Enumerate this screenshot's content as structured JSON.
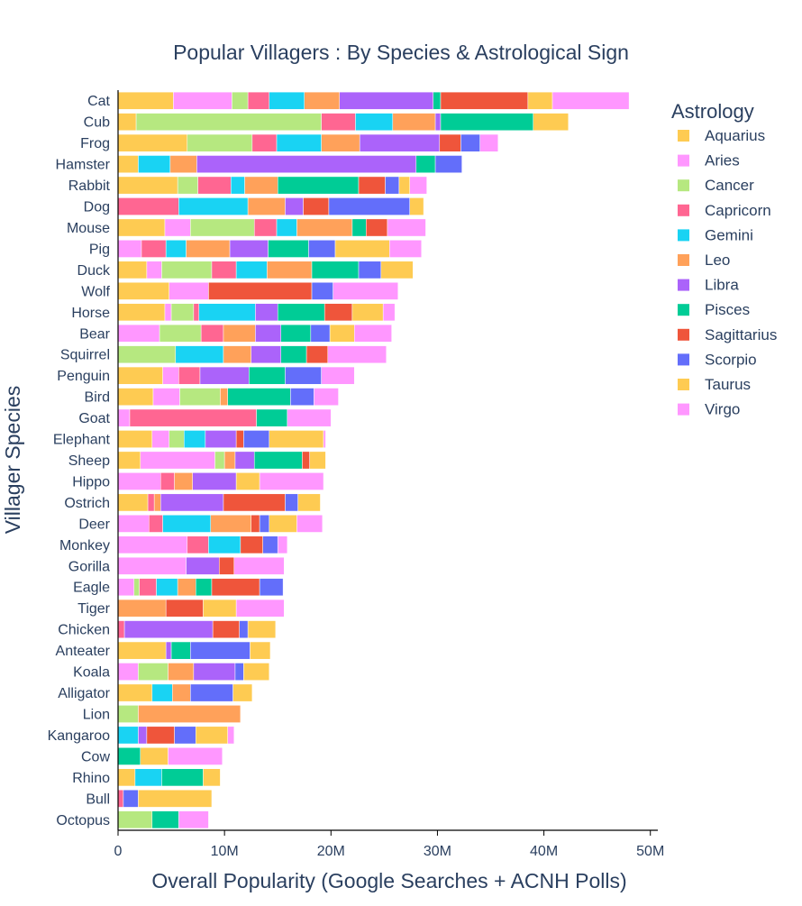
{
  "chart_data": {
    "type": "bar",
    "orientation": "horizontal",
    "barmode": "stack",
    "title": "Popular Villagers : By Species & Astrological Sign",
    "xlabel": "Overall Popularity (Google Searches + ACNH Polls)",
    "ylabel": "Villager Species",
    "xlim": [
      0,
      50700000
    ],
    "x_ticks": [
      0,
      10000000,
      20000000,
      30000000,
      40000000,
      50000000
    ],
    "x_tick_labels": [
      "0",
      "10M",
      "20M",
      "30M",
      "40M",
      "50M"
    ],
    "grid": false,
    "legend_title": "Astrology",
    "legend_position": "right",
    "categories": [
      "Cat",
      "Cub",
      "Frog",
      "Hamster",
      "Rabbit",
      "Dog",
      "Mouse",
      "Pig",
      "Duck",
      "Wolf",
      "Horse",
      "Bear",
      "Squirrel",
      "Penguin",
      "Bird",
      "Goat",
      "Elephant",
      "Sheep",
      "Hippo",
      "Ostrich",
      "Deer",
      "Monkey",
      "Gorilla",
      "Eagle",
      "Tiger",
      "Chicken",
      "Anteater",
      "Koala",
      "Alligator",
      "Lion",
      "Kangaroo",
      "Cow",
      "Rhino",
      "Bull",
      "Octopus"
    ],
    "series": [
      {
        "name": "Aquarius",
        "color": "#FECB52",
        "values": [
          5200000,
          1700000,
          6500000,
          1900000,
          5600000,
          0,
          4400000,
          0,
          2700000,
          4800000,
          4400000,
          0,
          0,
          4200000,
          3300000,
          0,
          3200000,
          2100000,
          0,
          2800000,
          0,
          0,
          0,
          0,
          0,
          0,
          4500000,
          0,
          3200000,
          0,
          0,
          0,
          1600000,
          0,
          0
        ]
      },
      {
        "name": "Aries",
        "color": "#FF97FF",
        "values": [
          5500000,
          0,
          0,
          0,
          0,
          0,
          2400000,
          2200000,
          1400000,
          3700000,
          600000,
          3900000,
          0,
          1500000,
          2500000,
          1100000,
          1600000,
          7000000,
          4000000,
          0,
          2900000,
          6500000,
          6400000,
          1500000,
          0,
          0,
          0,
          1900000,
          0,
          0,
          0,
          0,
          0,
          0,
          0
        ]
      },
      {
        "name": "Cancer",
        "color": "#B6E880",
        "values": [
          1500000,
          17400000,
          6100000,
          0,
          1900000,
          0,
          6000000,
          0,
          4700000,
          0,
          2100000,
          3900000,
          5400000,
          0,
          3800000,
          0,
          1400000,
          900000,
          0,
          0,
          0,
          0,
          0,
          500000,
          0,
          0,
          0,
          2800000,
          0,
          1900000,
          0,
          0,
          0,
          0,
          3200000
        ]
      },
      {
        "name": "Capricorn",
        "color": "#FF6692",
        "values": [
          2000000,
          3200000,
          2300000,
          0,
          3100000,
          5700000,
          2100000,
          2300000,
          2300000,
          0,
          500000,
          2100000,
          0,
          2000000,
          0,
          11900000,
          0,
          0,
          1300000,
          600000,
          1300000,
          2000000,
          0,
          1600000,
          0,
          600000,
          0,
          0,
          0,
          0,
          0,
          0,
          0,
          500000,
          0
        ]
      },
      {
        "name": "Gemini",
        "color": "#19D3F3",
        "values": [
          3300000,
          3500000,
          4200000,
          3000000,
          1300000,
          6500000,
          1900000,
          1900000,
          2900000,
          0,
          5300000,
          0,
          4500000,
          0,
          0,
          0,
          2000000,
          0,
          0,
          0,
          4500000,
          3000000,
          0,
          2000000,
          0,
          0,
          0,
          0,
          1900000,
          0,
          1900000,
          0,
          2500000,
          0,
          0
        ]
      },
      {
        "name": "Leo",
        "color": "#FFA15A",
        "values": [
          3300000,
          4000000,
          3600000,
          2500000,
          3100000,
          3500000,
          5200000,
          4100000,
          4200000,
          0,
          0,
          3000000,
          2600000,
          0,
          700000,
          0,
          0,
          1000000,
          1700000,
          600000,
          3800000,
          0,
          0,
          1700000,
          4500000,
          0,
          0,
          2400000,
          1700000,
          9600000,
          0,
          0,
          0,
          0,
          0
        ]
      },
      {
        "name": "Libra",
        "color": "#AB63FA",
        "values": [
          8800000,
          500000,
          7500000,
          20600000,
          0,
          1700000,
          0,
          3600000,
          0,
          0,
          2100000,
          2400000,
          2800000,
          4600000,
          0,
          0,
          2900000,
          1800000,
          4100000,
          5900000,
          0,
          0,
          3100000,
          0,
          0,
          8300000,
          500000,
          3900000,
          0,
          0,
          800000,
          0,
          0,
          0,
          0
        ]
      },
      {
        "name": "Pisces",
        "color": "#00CC96",
        "values": [
          700000,
          8700000,
          0,
          1800000,
          7600000,
          0,
          1300000,
          3800000,
          4400000,
          0,
          4400000,
          2800000,
          2400000,
          3400000,
          5900000,
          2900000,
          0,
          4500000,
          0,
          0,
          0,
          0,
          0,
          1500000,
          0,
          0,
          1800000,
          0,
          0,
          0,
          0,
          2100000,
          3900000,
          0,
          2500000
        ]
      },
      {
        "name": "Sagittarius",
        "color": "#EF553B",
        "values": [
          8200000,
          0,
          2000000,
          0,
          2500000,
          2400000,
          2000000,
          0,
          0,
          9700000,
          2600000,
          0,
          2000000,
          0,
          0,
          0,
          700000,
          700000,
          0,
          5800000,
          800000,
          2100000,
          1400000,
          4500000,
          3500000,
          2500000,
          0,
          0,
          0,
          0,
          2600000,
          0,
          0,
          0,
          0
        ]
      },
      {
        "name": "Scorpio",
        "color": "#636EFA",
        "values": [
          0,
          0,
          1800000,
          2500000,
          1300000,
          7600000,
          0,
          2500000,
          2100000,
          2000000,
          0,
          1800000,
          0,
          3400000,
          2200000,
          0,
          2400000,
          0,
          0,
          1200000,
          900000,
          1400000,
          0,
          2200000,
          0,
          800000,
          5600000,
          800000,
          4000000,
          0,
          2000000,
          0,
          0,
          1400000,
          0
        ]
      },
      {
        "name": "Taurus",
        "color": "#FECB52",
        "values": [
          2300000,
          3300000,
          0,
          0,
          1000000,
          1300000,
          0,
          5100000,
          3000000,
          0,
          2900000,
          2300000,
          0,
          0,
          0,
          0,
          5100000,
          1500000,
          2200000,
          2100000,
          2600000,
          0,
          0,
          0,
          3100000,
          2600000,
          1900000,
          2400000,
          1800000,
          0,
          3000000,
          2600000,
          1600000,
          6900000,
          0
        ]
      },
      {
        "name": "Virgo",
        "color": "#FF97FF",
        "values": [
          7200000,
          0,
          1700000,
          0,
          1600000,
          0,
          3600000,
          3000000,
          0,
          6100000,
          1100000,
          3500000,
          5500000,
          3100000,
          2300000,
          4100000,
          200000,
          0,
          6000000,
          0,
          2400000,
          900000,
          4700000,
          0,
          4500000,
          0,
          0,
          0,
          0,
          0,
          600000,
          5100000,
          0,
          0,
          2800000
        ]
      }
    ]
  }
}
